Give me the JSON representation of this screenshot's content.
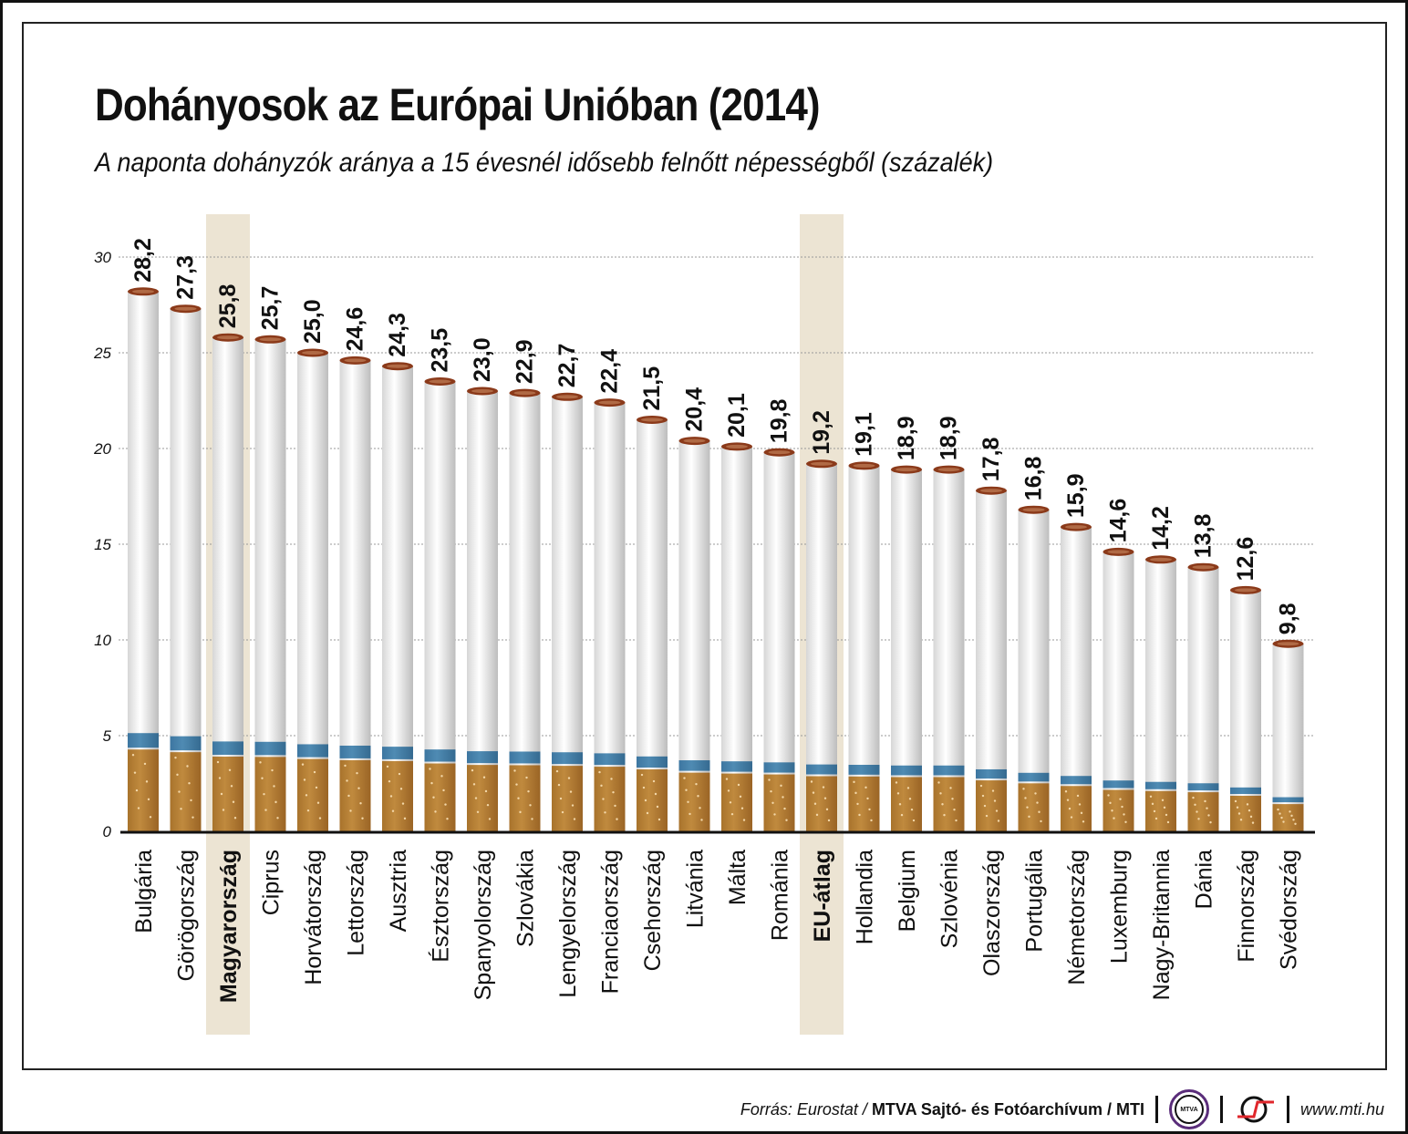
{
  "title": "Dohányosok az Európai Unióban (2014)",
  "subtitle": "A naponta dohányzók aránya a 15 évesnél idősebb felnőtt népességből (százalék)",
  "colors": {
    "highlight": "#ece4d3",
    "tobacco": "#c08a3e",
    "filter_band": "#4f8bb3",
    "paper": "#f2f2f2",
    "ember": "#8b3a1a",
    "grid": "#999999"
  },
  "chart_data": {
    "type": "bar",
    "title": "Dohányosok az Európai Unióban (2014)",
    "subtitle": "A naponta dohányzók aránya a 15 évesnél idősebb felnőtt népességből (százalék)",
    "ylim": [
      0,
      30
    ],
    "yticks": [
      0,
      5,
      10,
      15,
      20,
      25,
      30
    ],
    "grid": true,
    "highlighted": [
      "Magyarország",
      "EU-átlag"
    ],
    "categories": [
      "Bulgária",
      "Görögország",
      "Magyarország",
      "Ciprus",
      "Horvátország",
      "Lettország",
      "Ausztria",
      "Észtország",
      "Spanyolország",
      "Szlovákia",
      "Lengyelország",
      "Franciaország",
      "Csehország",
      "Litvánia",
      "Málta",
      "Románia",
      "EU-átlag",
      "Hollandia",
      "Belgium",
      "Szlovénia",
      "Olaszország",
      "Portugália",
      "Németország",
      "Luxemburg",
      "Nagy-Britannia",
      "Dánia",
      "Finnország",
      "Svédország"
    ],
    "values": [
      28.2,
      27.3,
      25.8,
      25.7,
      25.0,
      24.6,
      24.3,
      23.5,
      23.0,
      22.9,
      22.7,
      22.4,
      21.5,
      20.4,
      20.1,
      19.8,
      19.2,
      19.1,
      18.9,
      18.9,
      17.8,
      16.8,
      15.9,
      14.6,
      14.2,
      13.8,
      12.6,
      9.8
    ],
    "value_labels": [
      "28,2",
      "27,3",
      "25,8",
      "25,7",
      "25,0",
      "24,6",
      "24,3",
      "23,5",
      "23,0",
      "22,9",
      "22,7",
      "22,4",
      "21,5",
      "20,4",
      "20,1",
      "19,8",
      "19,2",
      "19,1",
      "18,9",
      "18,9",
      "17,8",
      "16,8",
      "15,9",
      "14,6",
      "14,2",
      "13,8",
      "12,6",
      "9,8"
    ]
  },
  "footer": {
    "source_prefix": "Forrás: Eurostat /",
    "source_bold": "MTVA Sajtó- és Fotóarchívum / MTI",
    "logo_mtva": "MTVA",
    "url": "www.mti.hu"
  }
}
